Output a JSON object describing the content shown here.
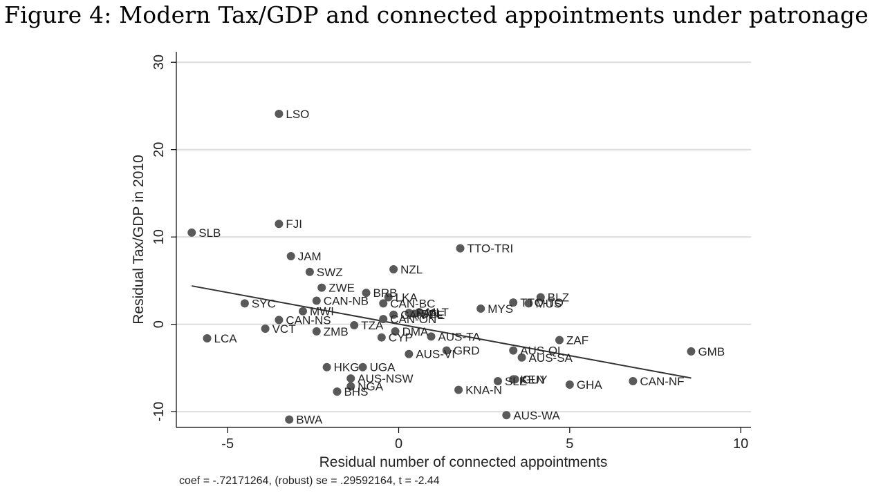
{
  "title": "Figure 4: Modern Tax/GDP and connected appointments under patronage",
  "footnote": "coef = -.72171264, (robust) se = .29592164, t = -2.44",
  "chart_data": {
    "type": "scatter",
    "xlabel": "Residual number of connected appointments",
    "ylabel": "Residual Tax/GDP in 2010",
    "xlim": [
      -6.5,
      10.3
    ],
    "ylim": [
      -11.8,
      31.2
    ],
    "xticks": [
      -5,
      0,
      5,
      10
    ],
    "yticks": [
      -10,
      0,
      10,
      20,
      30
    ],
    "xtick_labels": [
      "-5",
      "0",
      "5",
      "10"
    ],
    "ytick_labels": [
      "-10",
      "0",
      "10",
      "20",
      "30"
    ],
    "grid": "horizontal",
    "marker_color": "#595959",
    "line_color": "#333333",
    "fit_line": {
      "x": [
        -6.05,
        8.55
      ],
      "y": [
        4.4,
        -6.15
      ]
    },
    "points": [
      {
        "label": "LSO",
        "x": -3.5,
        "y": 24.1
      },
      {
        "label": "SLB",
        "x": -6.05,
        "y": 10.5
      },
      {
        "label": "FJI",
        "x": -3.5,
        "y": 11.5
      },
      {
        "label": "TTO-TRI",
        "x": 1.8,
        "y": 8.7
      },
      {
        "label": "JAM",
        "x": -3.15,
        "y": 7.8
      },
      {
        "label": "NZL",
        "x": -0.15,
        "y": 6.3
      },
      {
        "label": "SWZ",
        "x": -2.6,
        "y": 6.0
      },
      {
        "label": "ZWE",
        "x": -2.25,
        "y": 4.2
      },
      {
        "label": "BRB",
        "x": -0.95,
        "y": 3.6
      },
      {
        "label": "LKA",
        "x": -0.3,
        "y": 3.1
      },
      {
        "label": "CAN-NB",
        "x": -2.4,
        "y": 2.7
      },
      {
        "label": "CAN-BC",
        "x": -0.45,
        "y": 2.4
      },
      {
        "label": "SYC",
        "x": -4.5,
        "y": 2.4
      },
      {
        "label": "BLZ",
        "x": 4.15,
        "y": 3.1
      },
      {
        "label": "TTO-TO",
        "x": 3.35,
        "y": 2.5
      },
      {
        "label": "MUS",
        "x": 3.8,
        "y": 2.4
      },
      {
        "label": "MYS",
        "x": 2.4,
        "y": 1.8
      },
      {
        "label": "MWI",
        "x": -2.8,
        "y": 1.5
      },
      {
        "label": "MLT",
        "x": 0.6,
        "y": 1.4
      },
      {
        "label": "PAN",
        "x": 0.3,
        "y": 1.3
      },
      {
        "label": "BEL",
        "x": 0.45,
        "y": 1.2
      },
      {
        "label": "CAN-PE",
        "x": -0.15,
        "y": 1.1
      },
      {
        "label": "CAN-NS",
        "x": -3.5,
        "y": 0.5
      },
      {
        "label": "CAN-ON",
        "x": -0.45,
        "y": 0.6
      },
      {
        "label": "TZA",
        "x": -1.3,
        "y": -0.1
      },
      {
        "label": "VCT",
        "x": -3.9,
        "y": -0.5
      },
      {
        "label": "ZMB",
        "x": -2.4,
        "y": -0.8
      },
      {
        "label": "DMA",
        "x": -0.1,
        "y": -0.8
      },
      {
        "label": "AUS-TA",
        "x": 0.95,
        "y": -1.4
      },
      {
        "label": "CYP",
        "x": -0.5,
        "y": -1.5
      },
      {
        "label": "LCA",
        "x": -5.6,
        "y": -1.6
      },
      {
        "label": "ZAF",
        "x": 4.7,
        "y": -1.8
      },
      {
        "label": "GRD",
        "x": 1.4,
        "y": -3.0
      },
      {
        "label": "AUS-QL",
        "x": 3.35,
        "y": -3.0
      },
      {
        "label": "GMB",
        "x": 8.55,
        "y": -3.1
      },
      {
        "label": "AUS-VI",
        "x": 0.3,
        "y": -3.4
      },
      {
        "label": "AUS-SA",
        "x": 3.6,
        "y": -3.8
      },
      {
        "label": "HKG",
        "x": -2.1,
        "y": -4.9
      },
      {
        "label": "UGA",
        "x": -1.05,
        "y": -4.9
      },
      {
        "label": "AUS-NSW",
        "x": -1.4,
        "y": -6.2
      },
      {
        "label": "KEN",
        "x": 3.35,
        "y": -6.3
      },
      {
        "label": "SLE",
        "x": 2.9,
        "y": -6.5
      },
      {
        "label": "GUY",
        "x": 3.4,
        "y": -6.3
      },
      {
        "label": "CAN-NF",
        "x": 6.85,
        "y": -6.5
      },
      {
        "label": "GHA",
        "x": 5.0,
        "y": -6.9
      },
      {
        "label": "NGA",
        "x": -1.4,
        "y": -7.1
      },
      {
        "label": "KNA-N",
        "x": 1.75,
        "y": -7.5
      },
      {
        "label": "BHS",
        "x": -1.8,
        "y": -7.7
      },
      {
        "label": "AUS-WA",
        "x": 3.15,
        "y": -10.4
      },
      {
        "label": "BWA",
        "x": -3.2,
        "y": -10.9
      }
    ]
  }
}
